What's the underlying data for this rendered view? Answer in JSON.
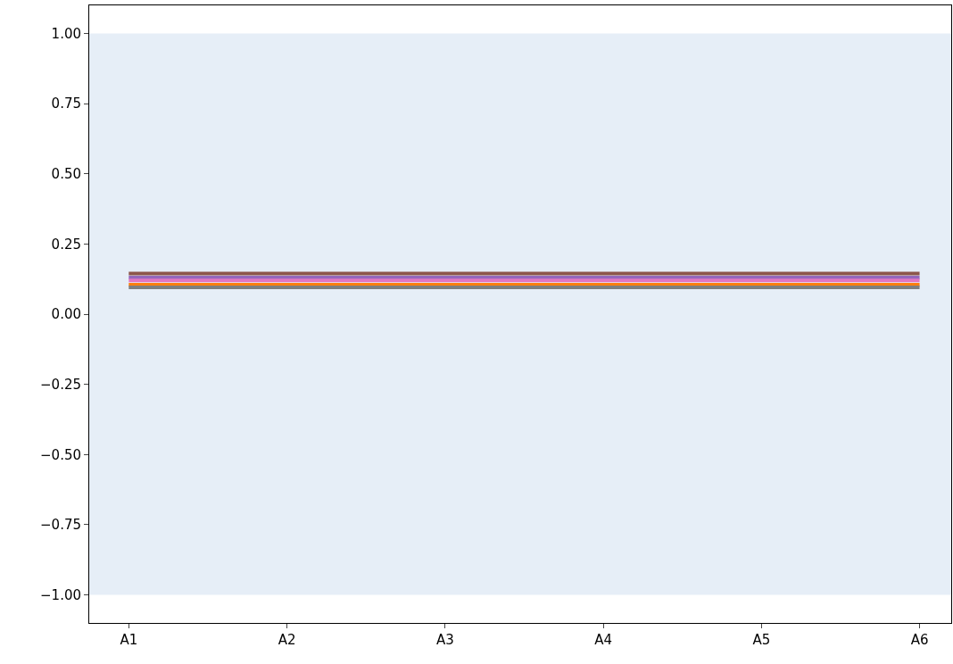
{
  "chart_data": {
    "type": "line",
    "categories": [
      "A1",
      "A2",
      "A3",
      "A4",
      "A5",
      "A6"
    ],
    "series": [
      {
        "color": "#8c564b",
        "values": [
          0.145,
          0.145,
          0.145,
          0.145,
          0.145,
          0.145
        ]
      },
      {
        "color": "#9467bd",
        "values": [
          0.13,
          0.13,
          0.13,
          0.13,
          0.13,
          0.13
        ]
      },
      {
        "color": "#e377c2",
        "values": [
          0.12,
          0.12,
          0.12,
          0.12,
          0.12,
          0.12
        ]
      },
      {
        "color": "#ff7f0e",
        "values": [
          0.105,
          0.105,
          0.105,
          0.105,
          0.105,
          0.105
        ]
      },
      {
        "color": "#7f7f7f",
        "values": [
          0.095,
          0.095,
          0.095,
          0.095,
          0.095,
          0.095
        ]
      }
    ],
    "ylim": [
      -1.1,
      1.1
    ],
    "yticks": [
      {
        "value": 1,
        "label": "1.00"
      },
      {
        "value": 0.75,
        "label": "0.75"
      },
      {
        "value": 0.5,
        "label": "0.50"
      },
      {
        "value": 0.25,
        "label": "0.25"
      },
      {
        "value": 0,
        "label": "0.00"
      },
      {
        "value": -0.25,
        "label": "−0.25"
      },
      {
        "value": -0.5,
        "label": "−0.50"
      },
      {
        "value": -0.75,
        "label": "−0.75"
      },
      {
        "value": -1,
        "label": "−1.00"
      }
    ],
    "bands": [
      {
        "axis": "y",
        "from": -1,
        "to": 1,
        "color": "#e6eef7"
      }
    ],
    "marker": "none",
    "line_style": "solid"
  }
}
